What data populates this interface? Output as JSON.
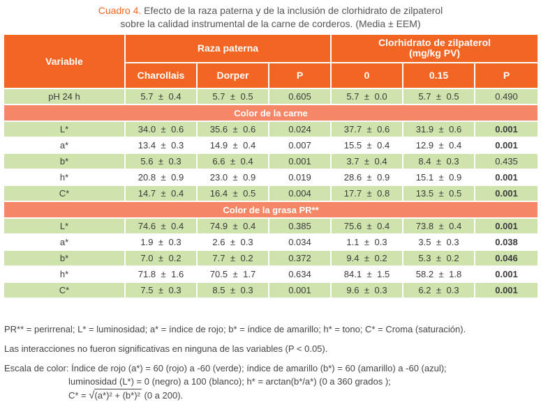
{
  "caption": {
    "label": "Cuadro 4.",
    "line1": "Efecto de la raza paterna y de la inclusión de clorhidrato de zilpaterol",
    "line2": "sobre la calidad instrumental de la carne de corderos. (Media ± EEM)"
  },
  "header": {
    "variable": "Variable",
    "group1": "Raza paterna",
    "group2_line1": "Clorhidrato de zilpaterol",
    "group2_line2": "(mg/kg PV)",
    "col_charollais": "Charollais",
    "col_dorper": "Dorper",
    "col_p1": "P",
    "col_0": "0",
    "col_015": "0.15",
    "col_p2": "P"
  },
  "pm": "±",
  "rows_top": [
    {
      "var": "pH 24 h",
      "a": [
        "5.7",
        "0.4"
      ],
      "b": [
        "5.7",
        "0.5"
      ],
      "p1": "0.605",
      "c": [
        "5.7",
        "0.0"
      ],
      "d": [
        "5.7",
        "0.5"
      ],
      "p2": "0.490",
      "p2_bold": false
    }
  ],
  "section_meat": "Color de la carne",
  "rows_meat": [
    {
      "var": "L*",
      "a": [
        "34.0",
        "0.6"
      ],
      "b": [
        "35.6",
        "0.6"
      ],
      "p1": "0.024",
      "c": [
        "37.7",
        "0.6"
      ],
      "d": [
        "31.9",
        "0.6"
      ],
      "p2": "0.001",
      "p2_bold": true
    },
    {
      "var": "a*",
      "a": [
        "13.4",
        "0.3"
      ],
      "b": [
        "14.9",
        "0.4"
      ],
      "p1": "0.007",
      "c": [
        "15.5",
        "0.4"
      ],
      "d": [
        "12.9",
        "0.4"
      ],
      "p2": "0.001",
      "p2_bold": true
    },
    {
      "var": "b*",
      "a": [
        "5.6",
        "0.3"
      ],
      "b": [
        "6.6",
        "0.4"
      ],
      "p1": "0.001",
      "c": [
        "3.7",
        "0.4"
      ],
      "d": [
        "8.4",
        "0.3"
      ],
      "p2": "0.435",
      "p2_bold": false
    },
    {
      "var": "h*",
      "a": [
        "20.8",
        "0.9"
      ],
      "b": [
        "23.0",
        "0.9"
      ],
      "p1": "0.019",
      "c": [
        "28.6",
        "0.9"
      ],
      "d": [
        "15.1",
        "0.9"
      ],
      "p2": "0.001",
      "p2_bold": true
    },
    {
      "var": "C*",
      "a": [
        "14.7",
        "0.4"
      ],
      "b": [
        "16.4",
        "0.5"
      ],
      "p1": "0.004",
      "c": [
        "17.7",
        "0.8"
      ],
      "d": [
        "13.5",
        "0.5"
      ],
      "p2": "0.001",
      "p2_bold": true
    }
  ],
  "section_fat": "Color de la grasa PR**",
  "rows_fat": [
    {
      "var": "L*",
      "a": [
        "74.6",
        "0.4"
      ],
      "b": [
        "74.9",
        "0.4"
      ],
      "p1": "0.385",
      "c": [
        "75.6",
        "0.4"
      ],
      "d": [
        "73.8",
        "0.4"
      ],
      "p2": "0.001",
      "p2_bold": true
    },
    {
      "var": "a*",
      "a": [
        "1.9",
        "0.3"
      ],
      "b": [
        "2.6",
        "0.3"
      ],
      "p1": "0.034",
      "c": [
        "1.1",
        "0.3"
      ],
      "d": [
        "3.5",
        "0.3"
      ],
      "p2": "0.038",
      "p2_bold": true
    },
    {
      "var": "b*",
      "a": [
        "7.0",
        "0.2"
      ],
      "b": [
        "7.7",
        "0.2"
      ],
      "p1": "0.372",
      "c": [
        "9.4",
        "0.2"
      ],
      "d": [
        "5.3",
        "0.2"
      ],
      "p2": "0.046",
      "p2_bold": true
    },
    {
      "var": "h*",
      "a": [
        "71.8",
        "1.6"
      ],
      "b": [
        "70.5",
        "1.7"
      ],
      "p1": "0.634",
      "c": [
        "84.1",
        "1.5"
      ],
      "d": [
        "58.2",
        "1.8"
      ],
      "p2": "0.001",
      "p2_bold": true
    },
    {
      "var": "C*",
      "a": [
        "7.5",
        "0.3"
      ],
      "b": [
        "8.5",
        "0.3"
      ],
      "p1": "0.001",
      "c": [
        "9.6",
        "0.3"
      ],
      "d": [
        "6.2",
        "0.3"
      ],
      "p2": "0.001",
      "p2_bold": true
    }
  ],
  "notes": {
    "abbrev": "PR** = perirrenal; L* = luminosidad; a* = índice de rojo; b* = índice de amarillo; h* = tono; C* = Croma (saturación).",
    "interactions": "Las interacciones no fueron significativas en ninguna de las variables (P < 0.05).",
    "scale_line1": "Escala de color: Índice de rojo (a*) = 60 (rojo) a -60 (verde); índice de amarillo (b*) = 60 (amarillo) a -60 (azul);",
    "scale_line2": "luminosidad (L*) = 0 (negro) a 100 (blanco); h* = arctan(b*/a*) (0 a 360 grados );",
    "scale_line3_prefix": "C* = ",
    "scale_line3_radical": "√",
    "scale_line3_radicand": "(a*)² + (b*)²",
    "scale_line3_suffix": " (0 a 200)."
  },
  "colors": {
    "header_orange": "#f26522",
    "section_orange": "#f58766",
    "row_green": "#cfe3ad"
  }
}
